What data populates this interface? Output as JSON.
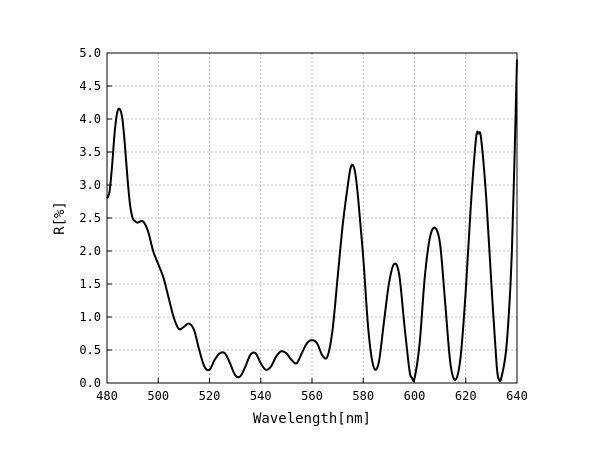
{
  "chart_data": {
    "type": "line",
    "title": "",
    "xlabel": "Wavelength[nm]",
    "ylabel": "R[%]",
    "xlim": [
      480,
      640
    ],
    "ylim": [
      0.0,
      5.0
    ],
    "xticks": [
      "480",
      "500",
      "520",
      "540",
      "560",
      "580",
      "600",
      "620",
      "640"
    ],
    "yticks": [
      "0.0",
      "0.5",
      "1.0",
      "1.5",
      "2.0",
      "2.5",
      "3.0",
      "3.5",
      "4.0",
      "4.5",
      "5.0"
    ],
    "grid": true,
    "legend": "none",
    "line_color": "#000000",
    "series": [
      {
        "x": [
          480,
          481,
          482,
          483,
          484,
          485,
          486,
          487,
          488,
          489,
          490,
          491,
          492,
          494,
          496,
          498,
          500,
          502,
          504,
          506,
          508,
          510,
          512,
          514,
          516,
          518,
          520,
          522,
          524,
          526,
          528,
          530,
          532,
          534,
          536,
          538,
          540,
          542,
          544,
          546,
          548,
          550,
          552,
          554,
          556,
          558,
          560,
          562,
          564,
          566,
          568,
          570,
          572,
          574,
          575,
          576,
          577,
          578,
          580,
          582,
          584,
          586,
          588,
          590,
          592,
          594,
          596,
          598,
          599,
          600,
          602,
          604,
          606,
          608,
          610,
          612,
          614,
          616,
          618,
          620,
          622,
          624,
          625,
          626,
          628,
          630,
          632,
          633,
          634,
          636,
          638,
          640
        ],
        "y": [
          2.8,
          2.9,
          3.3,
          3.8,
          4.1,
          4.15,
          4.0,
          3.6,
          3.1,
          2.7,
          2.5,
          2.45,
          2.43,
          2.45,
          2.3,
          2.0,
          1.8,
          1.6,
          1.3,
          1.0,
          0.82,
          0.85,
          0.9,
          0.8,
          0.5,
          0.25,
          0.2,
          0.35,
          0.45,
          0.45,
          0.3,
          0.12,
          0.1,
          0.25,
          0.43,
          0.45,
          0.3,
          0.2,
          0.25,
          0.4,
          0.48,
          0.45,
          0.35,
          0.3,
          0.45,
          0.6,
          0.65,
          0.6,
          0.42,
          0.4,
          0.8,
          1.6,
          2.4,
          3.0,
          3.25,
          3.3,
          3.15,
          2.8,
          1.9,
          0.8,
          0.25,
          0.3,
          0.9,
          1.5,
          1.8,
          1.65,
          0.9,
          0.2,
          0.08,
          0.07,
          0.6,
          1.6,
          2.2,
          2.35,
          2.1,
          1.2,
          0.3,
          0.05,
          0.4,
          1.4,
          2.7,
          3.7,
          3.78,
          3.7,
          2.8,
          1.5,
          0.3,
          0.05,
          0.1,
          0.6,
          2.0,
          4.9
        ]
      }
    ]
  }
}
